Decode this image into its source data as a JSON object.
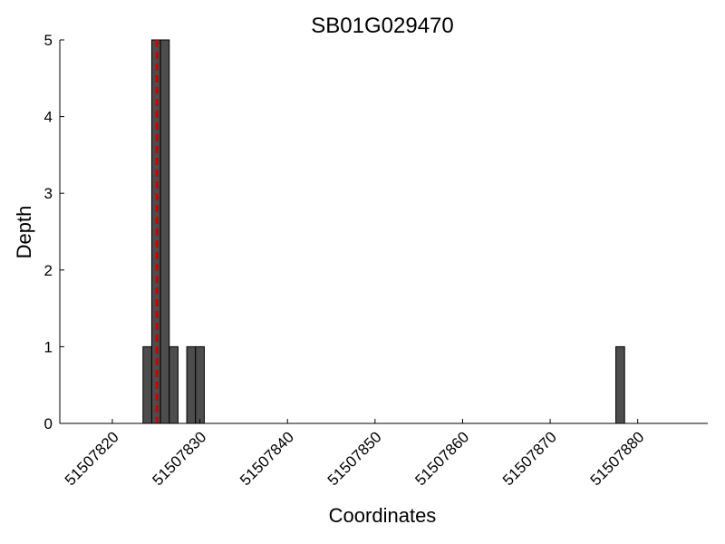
{
  "chart_data": {
    "type": "bar",
    "title": "SB01G029470",
    "xlabel": "Coordinates",
    "ylabel": "Depth",
    "xlim": [
      51507814,
      51507888
    ],
    "ylim": [
      0,
      5
    ],
    "x_ticks": [
      51507820,
      51507830,
      51507840,
      51507850,
      51507860,
      51507870,
      51507880
    ],
    "y_ticks": [
      0,
      1,
      2,
      3,
      4,
      5
    ],
    "series": [
      {
        "x": [
          51507824,
          51507825,
          51507826,
          51507827,
          51507829,
          51507830,
          51507878
        ],
        "values": [
          1,
          5,
          5,
          1,
          1,
          1,
          1
        ]
      }
    ],
    "bar_color": "#4d4d4d",
    "marker_line": {
      "x": 51507825.1,
      "color": "#cc0000",
      "style": "dashed"
    },
    "grid": false
  }
}
